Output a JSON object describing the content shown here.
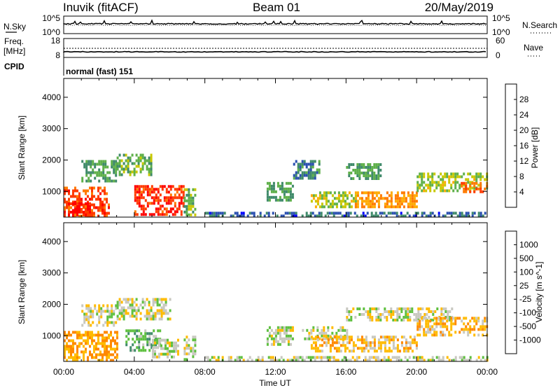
{
  "header": {
    "station": "Inuvik (fitACF)",
    "beam": "Beam 01",
    "date": "20/May/2019"
  },
  "top_panels": {
    "nsky": {
      "left_label": "N.Sky",
      "right_label": "N.Search",
      "left_ticks": [
        "10^5",
        "10^0"
      ],
      "right_ticks": [
        "10^5",
        "10^0"
      ]
    },
    "freq": {
      "left_label_1": "Freq.",
      "left_label_2": "[MHz]",
      "right_label": "Nave",
      "left_ticks": [
        "18",
        "8"
      ],
      "right_ticks": [
        "60",
        "0"
      ]
    },
    "cpid": {
      "label": "CPID",
      "text": "normal (fast) 151"
    }
  },
  "colors": {
    "power_scale": [
      "#0000ff",
      "#2a4fb0",
      "#3f8a6a",
      "#5fb04a",
      "#c8c800",
      "#ffaa00",
      "#ff7a00",
      "#ff3a00",
      "#ff0000"
    ],
    "velocity_scale": [
      "#ff0000",
      "#ff4400",
      "#ff8800",
      "#ffbb00",
      "#c8c8c0",
      "#5fc040",
      "#3f8a6a",
      "#2a60b0",
      "#1030c0"
    ]
  },
  "chart_data": [
    {
      "type": "heatmap",
      "title": "",
      "xlabel": "Time UT",
      "ylabel": "Slant Range [km]",
      "x_ticks": [
        "00:00",
        "04:00",
        "08:00",
        "12:00",
        "16:00",
        "20:00",
        "00:00"
      ],
      "y_ticks": [
        "1000",
        "2000",
        "3000",
        "4000"
      ],
      "xlim_hours": [
        0,
        24
      ],
      "ylim_km": [
        180,
        4600
      ],
      "colorbar": {
        "label": "Power [dB]",
        "ticks": [
          "4",
          "8",
          "12",
          "16",
          "20",
          "24",
          "28"
        ],
        "range": [
          0,
          30
        ]
      },
      "echo_regions": [
        {
          "t_start": 0.0,
          "t_end": 2.5,
          "r_low": 250,
          "r_high": 1150,
          "value": 24
        },
        {
          "t_start": 0.0,
          "t_end": 1.5,
          "r_low": 250,
          "r_high": 650,
          "value": 28
        },
        {
          "t_start": 1.0,
          "t_end": 3.0,
          "r_low": 1300,
          "r_high": 2000,
          "value": 10
        },
        {
          "t_start": 3.0,
          "t_end": 5.0,
          "r_low": 1500,
          "r_high": 2200,
          "value": 12
        },
        {
          "t_start": 4.0,
          "t_end": 6.8,
          "r_low": 300,
          "r_high": 1200,
          "value": 26
        },
        {
          "t_start": 6.8,
          "t_end": 7.5,
          "r_low": 250,
          "r_high": 1100,
          "value": 12
        },
        {
          "t_start": 8.0,
          "t_end": 24.0,
          "r_low": 200,
          "r_high": 350,
          "value": 6
        },
        {
          "t_start": 11.5,
          "t_end": 13.0,
          "r_low": 700,
          "r_high": 1300,
          "value": 10
        },
        {
          "t_start": 13.0,
          "t_end": 14.5,
          "r_low": 1400,
          "r_high": 2000,
          "value": 8
        },
        {
          "t_start": 14.0,
          "t_end": 16.5,
          "r_low": 500,
          "r_high": 1000,
          "value": 14
        },
        {
          "t_start": 16.5,
          "t_end": 20.0,
          "r_low": 500,
          "r_high": 1000,
          "value": 20
        },
        {
          "t_start": 16.0,
          "t_end": 18.0,
          "r_low": 1400,
          "r_high": 1900,
          "value": 10
        },
        {
          "t_start": 20.0,
          "t_end": 24.0,
          "r_low": 1000,
          "r_high": 1600,
          "value": 14
        },
        {
          "t_start": 22.5,
          "t_end": 24.0,
          "r_low": 1000,
          "r_high": 1300,
          "value": 22
        }
      ]
    },
    {
      "type": "heatmap",
      "title": "",
      "xlabel": "Time UT",
      "ylabel": "Slant Range [km]",
      "x_ticks": [
        "00:00",
        "04:00",
        "08:00",
        "12:00",
        "16:00",
        "20:00",
        "00:00"
      ],
      "y_ticks": [
        "1000",
        "2000",
        "3000",
        "4000"
      ],
      "xlim_hours": [
        0,
        24
      ],
      "ylim_km": [
        180,
        4600
      ],
      "colorbar": {
        "label": "Velocity [m s^-1]",
        "ticks": [
          "-1000",
          "-500",
          "-100",
          "-25",
          "25",
          "100",
          "500",
          "1000"
        ],
        "range": [
          -1200,
          1200
        ]
      },
      "echo_regions": [
        {
          "t_start": 0.0,
          "t_end": 3.0,
          "r_low": 250,
          "r_high": 1150,
          "value": -400
        },
        {
          "t_start": 1.0,
          "t_end": 3.0,
          "r_low": 1300,
          "r_high": 2000,
          "value": 0
        },
        {
          "t_start": 3.0,
          "t_end": 6.0,
          "r_low": 1500,
          "r_high": 2200,
          "value": 0
        },
        {
          "t_start": 3.5,
          "t_end": 5.5,
          "r_low": 500,
          "r_high": 1200,
          "value": 300
        },
        {
          "t_start": 5.0,
          "t_end": 6.5,
          "r_low": 300,
          "r_high": 900,
          "value": 20
        },
        {
          "t_start": 6.8,
          "t_end": 7.5,
          "r_low": 250,
          "r_high": 1000,
          "value": 0
        },
        {
          "t_start": 8.0,
          "t_end": 24.0,
          "r_low": 200,
          "r_high": 350,
          "value": 0
        },
        {
          "t_start": 11.5,
          "t_end": 13.0,
          "r_low": 700,
          "r_high": 1300,
          "value": 60
        },
        {
          "t_start": 13.5,
          "t_end": 16.0,
          "r_low": 900,
          "r_high": 1300,
          "value": 0
        },
        {
          "t_start": 14.0,
          "t_end": 20.0,
          "r_low": 500,
          "r_high": 1000,
          "value": -250
        },
        {
          "t_start": 16.0,
          "t_end": 22.0,
          "r_low": 1500,
          "r_high": 1900,
          "value": 0
        },
        {
          "t_start": 20.0,
          "t_end": 24.0,
          "r_low": 1000,
          "r_high": 1600,
          "value": -250
        }
      ]
    }
  ]
}
